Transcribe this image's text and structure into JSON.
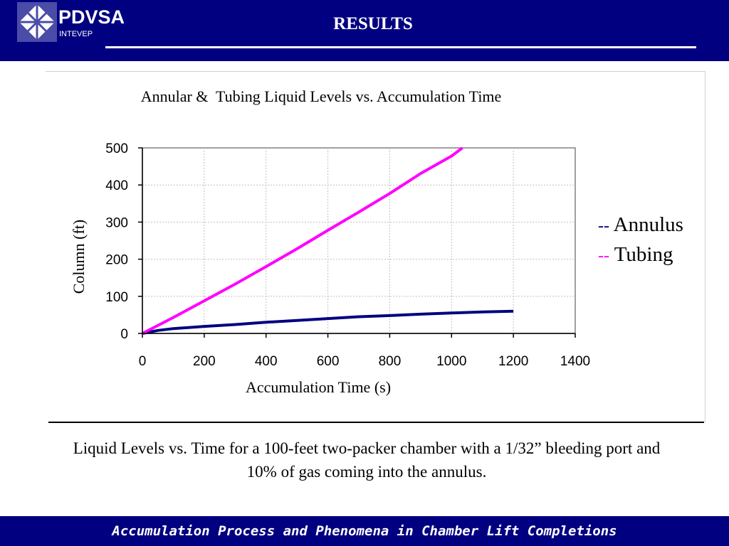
{
  "header": {
    "logo_name": "PDVSA",
    "logo_sub": "INTEVEP",
    "title": "RESULTS"
  },
  "legend": [
    {
      "marker": "--",
      "label": "Annulus",
      "color": "#000080"
    },
    {
      "marker": "--",
      "label": "Tubing",
      "color": "#ff00ff"
    }
  ],
  "caption": "Liquid Levels vs. Time for a 100-feet two-packer chamber with a 1/32” bleeding port and 10% of gas coming into the annulus.",
  "footer": "Accumulation Process and Phenomena in Chamber Lift Completions",
  "colors": {
    "bar": "#000080",
    "annulus": "#000080",
    "tubing": "#ff00ff"
  },
  "chart_data": {
    "type": "line",
    "title": "Annular &  Tubing Liquid Levels vs. Accumulation Time",
    "xlabel": "Accumulation Time (s)",
    "ylabel": "Column (ft)",
    "xlim": [
      0,
      1400
    ],
    "ylim": [
      0,
      500
    ],
    "xticks": [
      0,
      200,
      400,
      600,
      800,
      1000,
      1200,
      1400
    ],
    "yticks": [
      0,
      100,
      200,
      300,
      400,
      500
    ],
    "grid": true,
    "series": [
      {
        "name": "Annulus",
        "color": "#000080",
        "x": [
          0,
          50,
          100,
          200,
          300,
          400,
          500,
          600,
          700,
          800,
          900,
          1000,
          1100,
          1200
        ],
        "y": [
          0,
          8,
          13,
          19,
          24,
          30,
          35,
          40,
          45,
          48,
          52,
          55,
          58,
          60
        ]
      },
      {
        "name": "Tubing",
        "color": "#ff00ff",
        "x": [
          0,
          100,
          200,
          300,
          400,
          500,
          600,
          700,
          800,
          900,
          1000,
          1035
        ],
        "y": [
          0,
          43,
          88,
          133,
          180,
          228,
          278,
          327,
          377,
          431,
          478,
          500
        ]
      }
    ]
  }
}
